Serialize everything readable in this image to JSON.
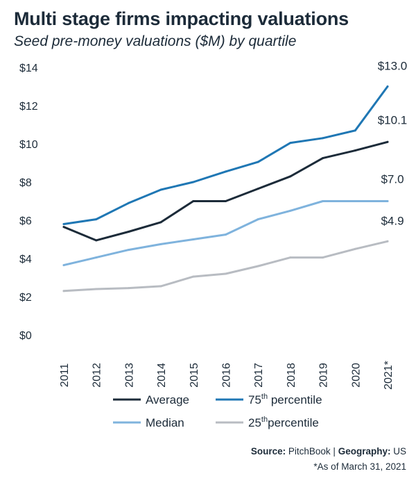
{
  "chart_data": {
    "type": "line",
    "title": "Multi stage firms impacting valuations",
    "subtitle": "Seed pre-money valuations ($M) by quartile",
    "categories": [
      "2011",
      "2012",
      "2013",
      "2014",
      "2015",
      "2016",
      "2017",
      "2018",
      "2019",
      "2020",
      "2021*"
    ],
    "ylim": [
      0,
      14
    ],
    "yticks": [
      0,
      2,
      4,
      6,
      8,
      10,
      12,
      14
    ],
    "ytick_labels": [
      "$0",
      "$2",
      "$4",
      "$6",
      "$8",
      "$10",
      "$12",
      "$14"
    ],
    "grid": false,
    "series": [
      {
        "name": "Average",
        "base": "Average",
        "sup": "",
        "rest": "",
        "color": "#1c2b39",
        "values": [
          5.65,
          4.95,
          5.4,
          5.9,
          7.0,
          7.0,
          7.65,
          8.3,
          9.25,
          9.65,
          10.1
        ],
        "end_label": "$10.1"
      },
      {
        "name": "75th percentile",
        "base": "75",
        "sup": "th",
        "rest": " percentile",
        "color": "#1f77b4",
        "values": [
          5.8,
          6.05,
          6.9,
          7.6,
          8.0,
          8.55,
          9.05,
          10.05,
          10.3,
          10.7,
          13.0
        ],
        "end_label": "$13.0"
      },
      {
        "name": "Median",
        "base": "Median",
        "sup": "",
        "rest": "",
        "color": "#7fb3dd",
        "values": [
          3.65,
          4.05,
          4.45,
          4.75,
          5.0,
          5.25,
          6.05,
          6.5,
          7.0,
          7.0,
          7.0
        ],
        "end_label": "$7.0"
      },
      {
        "name": "25th percentile",
        "base": "25",
        "sup": "th",
        "rest": "percentile",
        "color": "#b8bcc2",
        "values": [
          2.3,
          2.4,
          2.45,
          2.55,
          3.05,
          3.2,
          3.6,
          4.05,
          4.05,
          4.5,
          4.9
        ],
        "end_label": "$4.9"
      }
    ],
    "legend_position": "bottom",
    "source": {
      "label": "Source:",
      "value": "PitchBook",
      "sep": "|",
      "geo_label": "Geography:",
      "geo_value": "US"
    },
    "footnote": "*As of March 31, 2021"
  }
}
